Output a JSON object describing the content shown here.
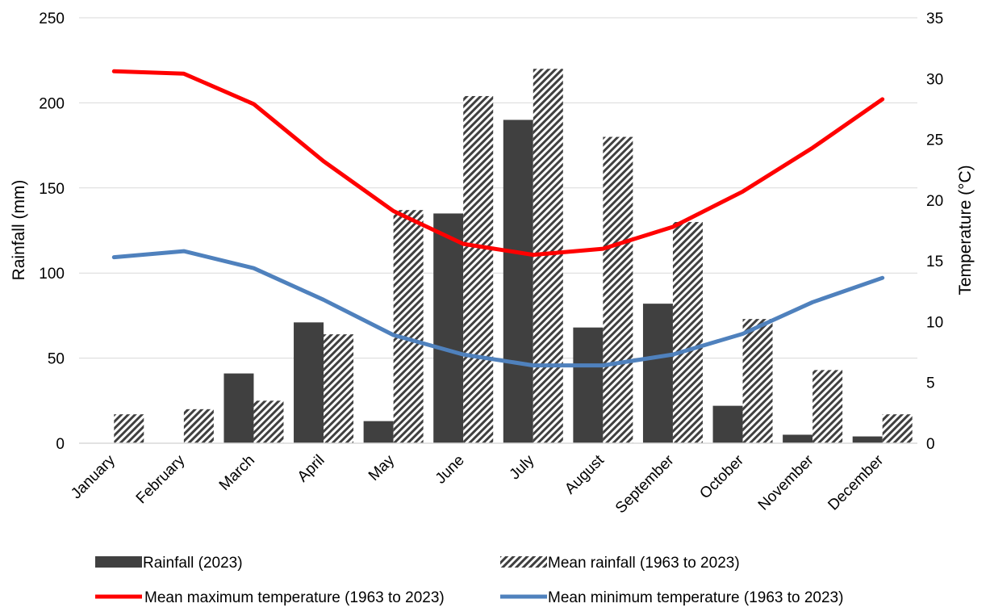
{
  "chart_data": {
    "type": "bar",
    "categories": [
      "January",
      "February",
      "March",
      "April",
      "May",
      "June",
      "July",
      "August",
      "September",
      "October",
      "November",
      "December"
    ],
    "series": [
      {
        "name": "Rainfall (2023)",
        "kind": "bar",
        "axis": "left",
        "color": "#404040",
        "pattern": "solid",
        "values": [
          0,
          0,
          41,
          71,
          13,
          135,
          190,
          68,
          82,
          22,
          5,
          4
        ]
      },
      {
        "name": "Mean rainfall (1963 to 2023)",
        "kind": "bar",
        "axis": "left",
        "color": "#404040",
        "pattern": "diagonal-hatch",
        "values": [
          17,
          20,
          25,
          64,
          137,
          204,
          220,
          180,
          130,
          73,
          43,
          17
        ]
      },
      {
        "name": "Mean maximum temperature (1963 to 2023)",
        "kind": "line",
        "axis": "right",
        "color": "#ff0000",
        "values": [
          30.6,
          30.4,
          27.9,
          23.2,
          19.1,
          16.4,
          15.5,
          16.0,
          17.8,
          20.7,
          24.3,
          28.3
        ]
      },
      {
        "name": "Mean minimum temperature (1963 to 2023)",
        "kind": "line",
        "axis": "right",
        "color": "#4f81bd",
        "values": [
          15.3,
          15.8,
          14.4,
          11.8,
          8.9,
          7.3,
          6.4,
          6.4,
          7.3,
          9.0,
          11.6,
          13.6
        ]
      }
    ],
    "ylabel": "Rainfall (mm)",
    "y2label": "Temperature (°C)",
    "ylim": [
      0,
      250
    ],
    "y2lim": [
      0,
      35
    ],
    "yticks": [
      "0",
      "50",
      "100",
      "150",
      "200",
      "250"
    ],
    "y2ticks": [
      "0",
      "5",
      "10",
      "15",
      "20",
      "25",
      "30",
      "35"
    ],
    "grid": true,
    "legend_position": "bottom"
  }
}
